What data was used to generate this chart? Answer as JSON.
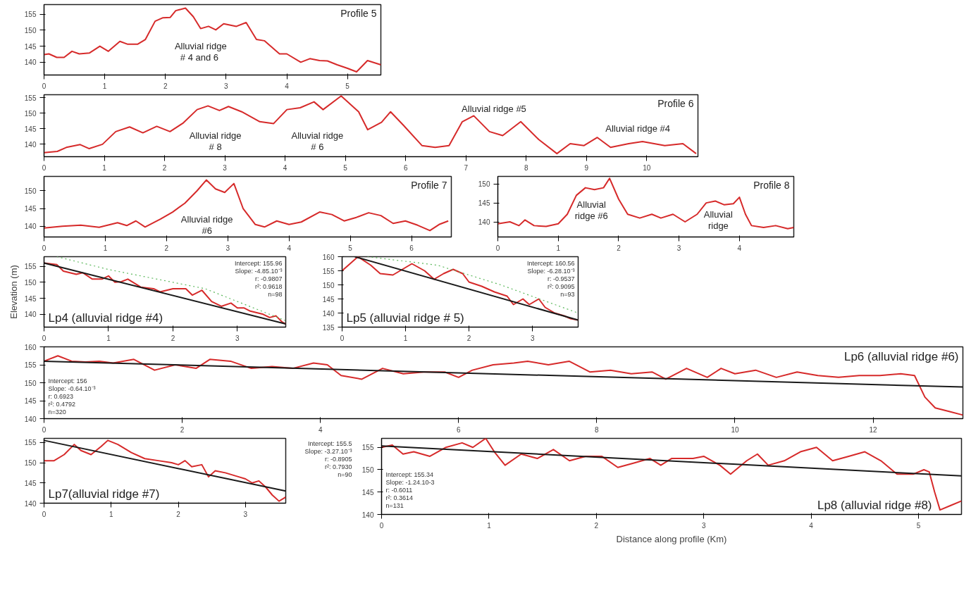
{
  "chart_data": [
    {
      "type": "line",
      "title": "Profile 5",
      "xlim": [
        0,
        5.55
      ],
      "ylim": [
        136,
        158
      ],
      "xticks": [
        0,
        1,
        2,
        3,
        4,
        5
      ],
      "yticks": [
        140,
        145,
        150,
        155
      ],
      "series": [
        {
          "color": "#d62a2a",
          "x": [
            0,
            0.08,
            0.21,
            0.33,
            0.46,
            0.58,
            0.75,
            0.92,
            1.06,
            1.25,
            1.38,
            1.54,
            1.67,
            1.83,
            1.96,
            2.08,
            2.17,
            2.33,
            2.46,
            2.58,
            2.71,
            2.83,
            2.96,
            3.17,
            3.33,
            3.5,
            3.63,
            3.88,
            4.0,
            4.23,
            4.38,
            4.54,
            4.67,
            4.83,
            5.0,
            5.15,
            5.33,
            5.55
          ],
          "values": [
            142.4,
            142.6,
            141.5,
            141.5,
            143.4,
            142.6,
            142.9,
            145.0,
            143.4,
            146.5,
            145.6,
            145.6,
            147.1,
            152.8,
            153.9,
            154.0,
            156.1,
            156.9,
            154.2,
            150.5,
            151.2,
            150.1,
            152.0,
            151.2,
            152.4,
            147.1,
            146.7,
            142.6,
            142.6,
            140.0,
            141.1,
            140.5,
            140.4,
            139.2,
            138.1,
            137.0,
            140.5,
            139.2
          ]
        }
      ],
      "annotations": [
        "Alluvial ridge\n#  4 and 6"
      ]
    },
    {
      "type": "line",
      "title": "Profile 6",
      "xlim": [
        0,
        10.85
      ],
      "ylim": [
        136,
        156
      ],
      "xticks": [
        0,
        1,
        2,
        3,
        4,
        5,
        6,
        7,
        8,
        9,
        10
      ],
      "yticks": [
        140,
        145,
        150,
        155
      ],
      "series": [
        {
          "color": "#d62a2a",
          "x": [
            0,
            0.22,
            0.37,
            0.6,
            0.75,
            0.97,
            1.19,
            1.42,
            1.64,
            1.87,
            2.09,
            2.31,
            2.54,
            2.72,
            2.91,
            3.06,
            3.28,
            3.58,
            3.81,
            4.03,
            4.25,
            4.48,
            4.63,
            4.93,
            5.22,
            5.37,
            5.6,
            5.75,
            5.97,
            6.27,
            6.49,
            6.72,
            6.94,
            7.13,
            7.39,
            7.61,
            7.91,
            8.21,
            8.51,
            8.73,
            8.96,
            9.18,
            9.4,
            9.7,
            9.93,
            10.3,
            10.6,
            10.82
          ],
          "values": [
            137.3,
            137.7,
            139.0,
            139.9,
            138.6,
            140.0,
            144.1,
            145.6,
            143.7,
            145.8,
            144.1,
            146.9,
            151.2,
            152.4,
            150.9,
            152.2,
            150.5,
            147.3,
            146.7,
            151.2,
            151.8,
            153.7,
            151.2,
            155.6,
            150.5,
            144.7,
            147.1,
            150.5,
            146.0,
            139.6,
            139.0,
            139.6,
            147.3,
            149.2,
            144.1,
            142.8,
            147.3,
            141.5,
            137.0,
            140.2,
            139.6,
            142.2,
            139.0,
            140.2,
            140.9,
            139.6,
            140.2,
            137.0
          ]
        }
      ],
      "annotations": [
        "Alluvial ridge\n# 8",
        "Alluvial ridge\n# 6",
        "Alluvial ridge #5",
        "Alluvial ridge #4"
      ]
    },
    {
      "type": "line",
      "title": "Profile 7",
      "xlim": [
        0,
        6.65
      ],
      "ylim": [
        137,
        154
      ],
      "xticks": [
        0,
        1,
        2,
        3,
        4,
        5,
        6
      ],
      "yticks": [
        140,
        145,
        150
      ],
      "series": [
        {
          "color": "#d62a2a",
          "x": [
            0,
            0.3,
            0.6,
            0.9,
            1.2,
            1.35,
            1.5,
            1.65,
            1.9,
            2.1,
            2.3,
            2.5,
            2.65,
            2.8,
            2.95,
            3.1,
            3.25,
            3.45,
            3.6,
            3.8,
            4.0,
            4.2,
            4.5,
            4.7,
            4.9,
            5.1,
            5.3,
            5.5,
            5.7,
            5.9,
            6.1,
            6.3,
            6.45,
            6.6
          ],
          "values": [
            139.5,
            140,
            140.3,
            139.7,
            141,
            140.2,
            141.5,
            139.8,
            142,
            144,
            146.5,
            150,
            153,
            150.5,
            149.5,
            152,
            145,
            140.5,
            139.8,
            141.5,
            140.5,
            141.2,
            144,
            143.3,
            141.5,
            142.5,
            143.8,
            143,
            140.8,
            141.5,
            140.3,
            138.8,
            140.5,
            141.5
          ]
        }
      ],
      "annotations": [
        "Alluvial ridge\n#6"
      ]
    },
    {
      "type": "line",
      "title": "Profile 8",
      "xlim": [
        0,
        4.9
      ],
      "ylim": [
        136,
        152
      ],
      "xticks": [
        0,
        1,
        2,
        3,
        4
      ],
      "yticks": [
        140,
        145,
        150
      ],
      "series": [
        {
          "color": "#d62a2a",
          "x": [
            0,
            0.2,
            0.35,
            0.45,
            0.6,
            0.8,
            1.0,
            1.15,
            1.3,
            1.45,
            1.6,
            1.75,
            1.85,
            2.0,
            2.15,
            2.35,
            2.55,
            2.7,
            2.9,
            3.1,
            3.3,
            3.45,
            3.6,
            3.75,
            3.9,
            4.0,
            4.1,
            4.2,
            4.4,
            4.6,
            4.8,
            4.9
          ],
          "values": [
            139.5,
            140,
            139,
            140.5,
            139,
            138.8,
            139.5,
            142,
            147,
            149,
            148.5,
            149,
            151.5,
            146,
            142,
            141,
            142,
            141,
            142,
            140,
            142,
            145,
            145.5,
            144.5,
            144.8,
            146.5,
            142,
            139,
            138.5,
            139,
            138.2,
            138.5
          ]
        }
      ],
      "annotations": [
        "Alluvial\nridge #6",
        "Alluvial\nridge"
      ]
    },
    {
      "type": "line",
      "title": "Lp4 (alluvial ridge #4)",
      "ylabel": "Elevation (m)",
      "xlim": [
        0,
        3.75
      ],
      "ylim": [
        136,
        158
      ],
      "xticks": [
        0,
        1,
        2,
        3
      ],
      "yticks": [
        140,
        145,
        150,
        155
      ],
      "series": [
        {
          "color": "#d62a2a",
          "x": [
            0,
            0.2,
            0.3,
            0.5,
            0.6,
            0.75,
            0.9,
            1.0,
            1.1,
            1.2,
            1.3,
            1.5,
            1.7,
            1.8,
            1.9,
            2.0,
            2.2,
            2.3,
            2.45,
            2.6,
            2.75,
            2.9,
            3.0,
            3.1,
            3.2,
            3.4,
            3.5,
            3.6,
            3.7,
            3.75
          ],
          "values": [
            156,
            155.5,
            153.5,
            152.5,
            153,
            151,
            151,
            152,
            150,
            150.2,
            151,
            148.5,
            148,
            147,
            147.5,
            148,
            148,
            146,
            147.5,
            144,
            142.5,
            143.5,
            142,
            142,
            141,
            140,
            139,
            139.5,
            137.5,
            137
          ]
        },
        {
          "color": "#5cb85c",
          "line_style": "dotted",
          "x": [
            0.2,
            1.0,
            2.0,
            2.5,
            3.0,
            3.75
          ],
          "values": [
            158,
            154,
            150,
            148,
            144,
            138
          ]
        },
        {
          "color": "#1a1a1a",
          "x": [
            0,
            3.75
          ],
          "values": [
            156,
            137
          ]
        }
      ],
      "annotations": [
        "Intercept: 155.96",
        "Slope: -4.85.10⁻³",
        "r: -0.9807",
        "r²: 0.9618",
        "n=98"
      ]
    },
    {
      "type": "line",
      "title": "Lp5 (alluvial ridge # 5)",
      "xlim": [
        0,
        3.72
      ],
      "ylim": [
        135,
        160
      ],
      "xticks": [
        0,
        1,
        2,
        3
      ],
      "yticks": [
        135,
        140,
        145,
        150,
        155,
        160
      ],
      "series": [
        {
          "color": "#d62a2a",
          "x": [
            0,
            0.15,
            0.25,
            0.45,
            0.6,
            0.8,
            0.95,
            1.1,
            1.3,
            1.45,
            1.6,
            1.75,
            1.9,
            2.0,
            2.2,
            2.4,
            2.6,
            2.7,
            2.85,
            2.95,
            3.1,
            3.2,
            3.35,
            3.5,
            3.6,
            3.72
          ],
          "values": [
            155,
            158,
            160,
            157,
            154,
            153.5,
            155.5,
            157.5,
            155,
            152,
            154,
            155.5,
            154,
            151,
            149.5,
            147.5,
            146,
            143,
            145,
            143,
            145,
            142,
            140,
            139,
            138,
            137.5
          ]
        },
        {
          "color": "#5cb85c",
          "line_style": "dotted",
          "x": [
            0.4,
            1.5,
            2.5,
            3.72
          ],
          "values": [
            160,
            157,
            150,
            140
          ]
        },
        {
          "color": "#1a1a1a",
          "x": [
            0.2,
            3.72
          ],
          "values": [
            160,
            137.5
          ]
        }
      ],
      "annotations": [
        "Intercept: 160.56",
        "Slope: -6.28.10⁻³",
        "r: -0.9537",
        "r²: 0.9095",
        "n=93"
      ]
    },
    {
      "type": "line",
      "title": "Lp6 (alluvial ridge #6)",
      "xlim": [
        0,
        13.3
      ],
      "ylim": [
        140,
        160
      ],
      "xticks": [
        0,
        2,
        4,
        6,
        8,
        10,
        12
      ],
      "yticks": [
        140,
        145,
        150,
        155,
        160
      ],
      "series": [
        {
          "color": "#d62a2a",
          "x": [
            0,
            0.2,
            0.4,
            0.6,
            0.8,
            1.0,
            1.3,
            1.6,
            1.9,
            2.2,
            2.4,
            2.7,
            3.0,
            3.3,
            3.6,
            3.9,
            4.1,
            4.3,
            4.6,
            4.9,
            5.2,
            5.5,
            5.8,
            6.0,
            6.2,
            6.5,
            6.8,
            7.0,
            7.3,
            7.6,
            7.9,
            8.2,
            8.5,
            8.8,
            9.0,
            9.3,
            9.6,
            9.8,
            10.0,
            10.3,
            10.6,
            10.9,
            11.2,
            11.5,
            11.8,
            12.1,
            12.4,
            12.6,
            12.75,
            12.9,
            13.1,
            13.3
          ],
          "values": [
            156,
            157.5,
            156,
            155.8,
            156,
            155.5,
            156.5,
            153.5,
            155,
            154,
            156.5,
            156,
            154,
            154.5,
            154,
            155.5,
            155,
            152,
            151,
            154,
            152.5,
            153,
            153,
            151.5,
            153.5,
            155,
            155.5,
            156,
            155,
            156,
            153,
            153.5,
            152.5,
            153,
            151,
            154,
            151.5,
            154,
            152.5,
            153.5,
            151.5,
            153,
            152,
            151.5,
            152,
            152,
            152.5,
            152,
            146,
            143,
            142,
            141
          ]
        },
        {
          "color": "#1a1a1a",
          "x": [
            0,
            13.3
          ],
          "values": [
            156,
            148.8
          ]
        }
      ],
      "annotations": [
        "Intercept: 156",
        "Slope: -0.64.10⁻³",
        "r: 0.6923",
        "r²: 0.4792",
        "n=320"
      ]
    },
    {
      "type": "line",
      "title": "Lp7(alluvial ridge #7)",
      "xlim": [
        0,
        3.6
      ],
      "ylim": [
        140,
        156
      ],
      "xticks": [
        0,
        1,
        2,
        3
      ],
      "yticks": [
        140,
        145,
        150,
        155
      ],
      "series": [
        {
          "color": "#d62a2a",
          "x": [
            0,
            0.15,
            0.3,
            0.45,
            0.55,
            0.7,
            0.85,
            0.95,
            1.1,
            1.3,
            1.5,
            1.7,
            1.9,
            2.0,
            2.1,
            2.2,
            2.35,
            2.45,
            2.55,
            2.7,
            2.9,
            3.0,
            3.1,
            3.2,
            3.3,
            3.4,
            3.5,
            3.6
          ],
          "values": [
            150.5,
            150.5,
            152,
            154.5,
            153,
            152,
            154,
            155.5,
            154.5,
            152.5,
            151,
            150.5,
            150,
            149.5,
            150.5,
            149,
            149.5,
            146.5,
            148,
            147.5,
            146.5,
            146,
            145,
            145.5,
            144,
            142,
            140.5,
            141.5
          ]
        },
        {
          "color": "#1a1a1a",
          "x": [
            0,
            3.6
          ],
          "values": [
            155.5,
            143
          ]
        }
      ],
      "annotations": [
        "Intercept: 155.5",
        "Slope: -3.27.10⁻³",
        "r: -0.8905",
        "r²: 0.7930",
        "n=90"
      ]
    },
    {
      "type": "line",
      "title": "Lp8 (alluvial ridge #8)",
      "xlabel": "Distance along profile (Km)",
      "xlim": [
        0,
        5.4
      ],
      "ylim": [
        140,
        157
      ],
      "xticks": [
        0,
        1,
        2,
        3,
        4,
        5
      ],
      "yticks": [
        140,
        145,
        150,
        155
      ],
      "series": [
        {
          "color": "#d62a2a",
          "x": [
            0,
            0.1,
            0.2,
            0.3,
            0.45,
            0.6,
            0.75,
            0.85,
            0.97,
            1.05,
            1.15,
            1.3,
            1.45,
            1.6,
            1.75,
            1.9,
            2.05,
            2.2,
            2.35,
            2.5,
            2.6,
            2.7,
            2.9,
            3.0,
            3.15,
            3.25,
            3.4,
            3.5,
            3.6,
            3.75,
            3.9,
            4.05,
            4.2,
            4.35,
            4.5,
            4.65,
            4.8,
            4.95,
            5.05,
            5.1,
            5.15,
            5.2,
            5.3,
            5.4
          ],
          "values": [
            155,
            155.5,
            153.5,
            154,
            153,
            155,
            156,
            155,
            157,
            154,
            151,
            153.5,
            152.5,
            154.5,
            152,
            153,
            153,
            150.5,
            151.5,
            152.5,
            151,
            152.5,
            152.5,
            153,
            151,
            149,
            152,
            153.5,
            151,
            152,
            154,
            155,
            152,
            153,
            154,
            152,
            149,
            149,
            150,
            149.5,
            145,
            141,
            142,
            143
          ]
        },
        {
          "color": "#1a1a1a",
          "x": [
            0,
            5.4
          ],
          "values": [
            155.3,
            148.6
          ]
        }
      ],
      "annotations": [
        "Intercept: 155.34",
        "Slope: -1.24.10-3",
        "r: -0.6011",
        "r²: 0.3614",
        "n=131"
      ]
    }
  ]
}
